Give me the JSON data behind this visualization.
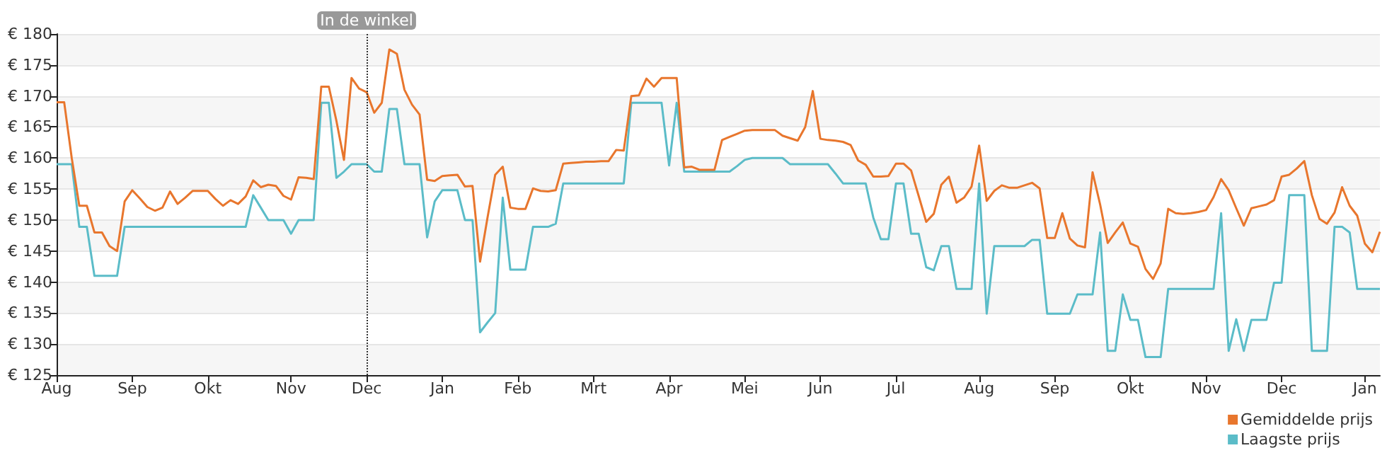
{
  "chart_data": {
    "type": "line",
    "categories": [
      "Aug",
      null,
      null,
      null,
      null,
      null,
      null,
      null,
      null,
      null,
      "Sep",
      null,
      null,
      null,
      null,
      null,
      null,
      null,
      null,
      null,
      "Okt",
      null,
      null,
      null,
      null,
      null,
      null,
      null,
      null,
      null,
      null,
      "Nov",
      null,
      null,
      null,
      null,
      null,
      null,
      null,
      null,
      null,
      "Dec",
      null,
      null,
      null,
      null,
      null,
      null,
      null,
      null,
      null,
      "Jan",
      null,
      null,
      null,
      null,
      null,
      null,
      null,
      null,
      null,
      "Feb",
      null,
      null,
      null,
      null,
      null,
      null,
      null,
      null,
      null,
      "Mrt",
      null,
      null,
      null,
      null,
      null,
      null,
      null,
      null,
      null,
      "Apr",
      null,
      null,
      null,
      null,
      null,
      null,
      null,
      null,
      null,
      "Mei",
      null,
      null,
      null,
      null,
      null,
      null,
      null,
      null,
      null,
      "Jun",
      null,
      null,
      null,
      null,
      null,
      null,
      null,
      null,
      null,
      "Jul",
      null,
      null,
      null,
      null,
      null,
      null,
      null,
      null,
      null,
      null,
      "Aug",
      null,
      null,
      null,
      null,
      null,
      null,
      null,
      null,
      null,
      "Sep",
      null,
      null,
      null,
      null,
      null,
      null,
      null,
      null,
      null,
      "Okt",
      null,
      null,
      null,
      null,
      null,
      null,
      null,
      null,
      null,
      "Nov",
      null,
      null,
      null,
      null,
      null,
      null,
      null,
      null,
      null,
      "Dec",
      null,
      null,
      null,
      null,
      null,
      null,
      null,
      null,
      null,
      null,
      "Jan",
      null,
      null
    ],
    "series": [
      {
        "name": "Gemiddelde prijs",
        "color": "#e8762d",
        "values": [
          169,
          169,
          160,
          152.3,
          152.3,
          148,
          148,
          145.8,
          145,
          153,
          154.8,
          153.5,
          152.1,
          151.5,
          152,
          154.6,
          152.6,
          153.6,
          154.7,
          154.7,
          154.7,
          153.4,
          152.3,
          153.2,
          152.6,
          153.8,
          156.4,
          155.3,
          155.7,
          155.5,
          153.9,
          153.3,
          156.9,
          156.8,
          156.6,
          171.5,
          171.5,
          166,
          159.7,
          172.9,
          171.2,
          170.6,
          167.3,
          168.9,
          177.5,
          176.8,
          171,
          168.6,
          167,
          156.5,
          156.3,
          157.1,
          157.2,
          157.3,
          155.4,
          155.5,
          143.3,
          150.5,
          157.3,
          158.6,
          152,
          151.8,
          151.8,
          155.1,
          154.7,
          154.6,
          154.8,
          159.1,
          159.2,
          159.3,
          159.4,
          159.4,
          159.5,
          159.5,
          161.3,
          161.2,
          170,
          170.1,
          172.8,
          171.5,
          172.9,
          172.9,
          172.9,
          158.5,
          158.6,
          158.1,
          158.1,
          158.1,
          162.9,
          163.4,
          163.9,
          164.4,
          164.5,
          164.5,
          164.5,
          164.5,
          163.6,
          163.2,
          162.8,
          165,
          170.8,
          163.1,
          162.9,
          162.8,
          162.6,
          162.1,
          159.6,
          158.9,
          157,
          157,
          157.1,
          159.1,
          159.1,
          158,
          153.9,
          149.7,
          151,
          155.7,
          157,
          152.8,
          153.6,
          155.4,
          162,
          153.1,
          154.7,
          155.6,
          155.2,
          155.2,
          155.6,
          156,
          155.1,
          147.1,
          147.1,
          151.1,
          147,
          145.9,
          145.6,
          157.7,
          152.5,
          146.3,
          148,
          149.6,
          146.2,
          145.7,
          142.1,
          140.5,
          143,
          151.8,
          151.1,
          151,
          151.1,
          151.3,
          151.6,
          153.7,
          156.6,
          154.8,
          151.9,
          149.1,
          151.9,
          152.2,
          152.5,
          153.2,
          157,
          157.3,
          158.3,
          159.5,
          154,
          150.2,
          149.4,
          151.2,
          155.3,
          152.3,
          150.7,
          146.2,
          144.8,
          148.1
        ]
      },
      {
        "name": "Laagste prijs",
        "color": "#5bbcc8",
        "values": [
          159,
          159,
          159,
          148.9,
          148.9,
          141,
          141,
          141,
          141,
          148.9,
          148.9,
          148.9,
          148.9,
          148.9,
          148.9,
          148.9,
          148.9,
          148.9,
          148.9,
          148.9,
          148.9,
          148.9,
          148.9,
          148.9,
          148.9,
          148.9,
          154,
          152,
          150,
          150,
          150,
          147.8,
          150,
          150,
          150,
          168.9,
          168.9,
          156.8,
          157.8,
          159,
          159,
          159,
          157.8,
          157.8,
          167.9,
          167.9,
          159,
          159,
          159,
          147.2,
          153,
          154.8,
          154.8,
          154.8,
          150,
          150,
          131.9,
          133.5,
          135,
          153.6,
          142,
          142,
          142,
          148.9,
          148.9,
          148.9,
          149.4,
          155.9,
          155.9,
          155.9,
          155.9,
          155.9,
          155.9,
          155.9,
          155.9,
          155.9,
          168.9,
          168.9,
          168.9,
          168.9,
          168.9,
          158.8,
          168.9,
          157.8,
          157.8,
          157.8,
          157.8,
          157.8,
          157.8,
          157.8,
          158.7,
          159.7,
          160,
          160,
          160,
          160,
          160,
          159,
          159,
          159,
          159,
          159,
          159,
          157.5,
          155.9,
          155.9,
          155.9,
          155.9,
          150.4,
          146.9,
          146.9,
          155.9,
          155.9,
          147.8,
          147.8,
          142.4,
          141.9,
          145.8,
          145.8,
          138.9,
          138.9,
          138.9,
          155.9,
          134.9,
          145.8,
          145.8,
          145.8,
          145.8,
          145.8,
          146.8,
          146.8,
          134.9,
          134.9,
          134.9,
          134.9,
          138,
          138,
          138,
          148,
          128.9,
          128.9,
          138,
          133.9,
          133.9,
          127.9,
          127.9,
          127.9,
          138.9,
          138.9,
          138.9,
          138.9,
          138.9,
          138.9,
          138.9,
          151.1,
          128.9,
          134,
          128.9,
          133.9,
          133.9,
          133.9,
          139.9,
          139.9,
          154,
          154,
          154,
          128.9,
          128.9,
          128.9,
          148.9,
          148.9,
          148,
          138.9,
          138.9,
          138.9,
          138.9
        ]
      }
    ],
    "ylim": [
      125,
      180
    ],
    "yticks": [
      {
        "value": 125,
        "label": "€ 125"
      },
      {
        "value": 130,
        "label": "€ 130"
      },
      {
        "value": 135,
        "label": "€ 135"
      },
      {
        "value": 140,
        "label": "€ 140"
      },
      {
        "value": 145,
        "label": "€ 145"
      },
      {
        "value": 150,
        "label": "€ 150"
      },
      {
        "value": 155,
        "label": "€ 155"
      },
      {
        "value": 160,
        "label": "€ 160"
      },
      {
        "value": 165,
        "label": "€ 165"
      },
      {
        "value": 170,
        "label": "€ 170"
      },
      {
        "value": 175,
        "label": "€ 175"
      },
      {
        "value": 180,
        "label": "€ 180"
      }
    ],
    "ref_lines": [
      {
        "axis": "x",
        "value": "Dec",
        "label": "In de winkel",
        "color": "#333333",
        "line_style": "dotted"
      }
    ],
    "grid": "y",
    "legend": "bottom right",
    "marker": "none"
  }
}
